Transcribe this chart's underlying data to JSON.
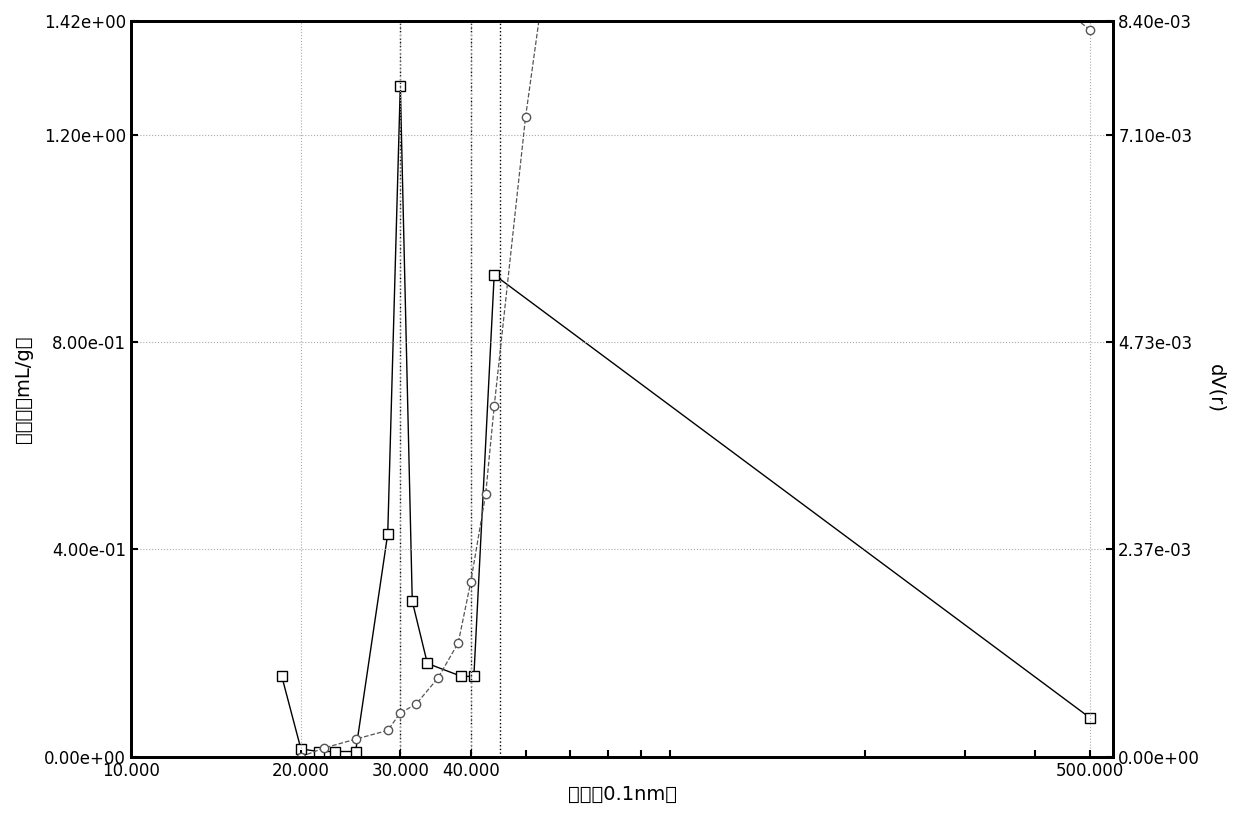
{
  "left_series": {
    "x": [
      18.5,
      20.0,
      21.5,
      23.0,
      25.0,
      28.5,
      30.0,
      31.5,
      33.5,
      38.5,
      40.5,
      44.0,
      500.0
    ],
    "y": [
      0.155,
      0.015,
      0.01,
      0.01,
      0.01,
      0.43,
      1.295,
      0.3,
      0.18,
      0.155,
      0.155,
      0.93,
      0.075
    ],
    "color": "#000000",
    "marker": "s",
    "linestyle": "-",
    "markersize": 7,
    "linewidth": 1.0
  },
  "right_series": {
    "x": [
      20.0,
      22.0,
      25.0,
      28.5,
      30.0,
      32.0,
      35.0,
      38.0,
      40.0,
      42.5,
      44.0,
      50.0,
      65.0,
      500.0
    ],
    "y": [
      0.0,
      0.0001,
      0.0002,
      0.0003,
      0.0005,
      0.0006,
      0.0009,
      0.0013,
      0.002,
      0.003,
      0.004,
      0.0073,
      0.0126,
      0.0083
    ],
    "color": "#555555",
    "marker": "o",
    "linestyle": "--",
    "markersize": 6,
    "linewidth": 0.9
  },
  "vlines": [
    30.0,
    40.0,
    45.0
  ],
  "vline_style": {
    "color": "#000000",
    "linestyle": ":",
    "linewidth": 1.0
  },
  "xlim": [
    10.0,
    550.0
  ],
  "ylim_left": [
    0.0,
    1.42
  ],
  "ylim_right": [
    0.0,
    0.0084
  ],
  "yticks_left": [
    0.0,
    0.4,
    0.8,
    1.2,
    1.42
  ],
  "ytick_labels_left": [
    "0.00e+00",
    "4.00e-01",
    "8.00e-01",
    "1.20e+00",
    "1.42e+00"
  ],
  "yticks_right": [
    0.0,
    0.00237,
    0.00473,
    0.0071,
    0.0084
  ],
  "ytick_labels_right": [
    "0.00e+00",
    "2.37e-03",
    "4.73e-03",
    "7.10e-03",
    "8.40e-03"
  ],
  "xticks": [
    10.0,
    20.0,
    30.0,
    40.0,
    500.0
  ],
  "xtick_labels": [
    "10.000",
    "20.000",
    "30.000",
    "40.000",
    "500.000"
  ],
  "xlabel": "孔径（0.1nm）",
  "ylabel_left": "孔体积（mL/g）",
  "ylabel_right": "dV(r)",
  "grid_linestyle": ":",
  "grid_color": "#aaaaaa",
  "grid_linewidth": 0.8,
  "background_color": "#ffffff",
  "font_size": 14,
  "tick_font_size": 12
}
